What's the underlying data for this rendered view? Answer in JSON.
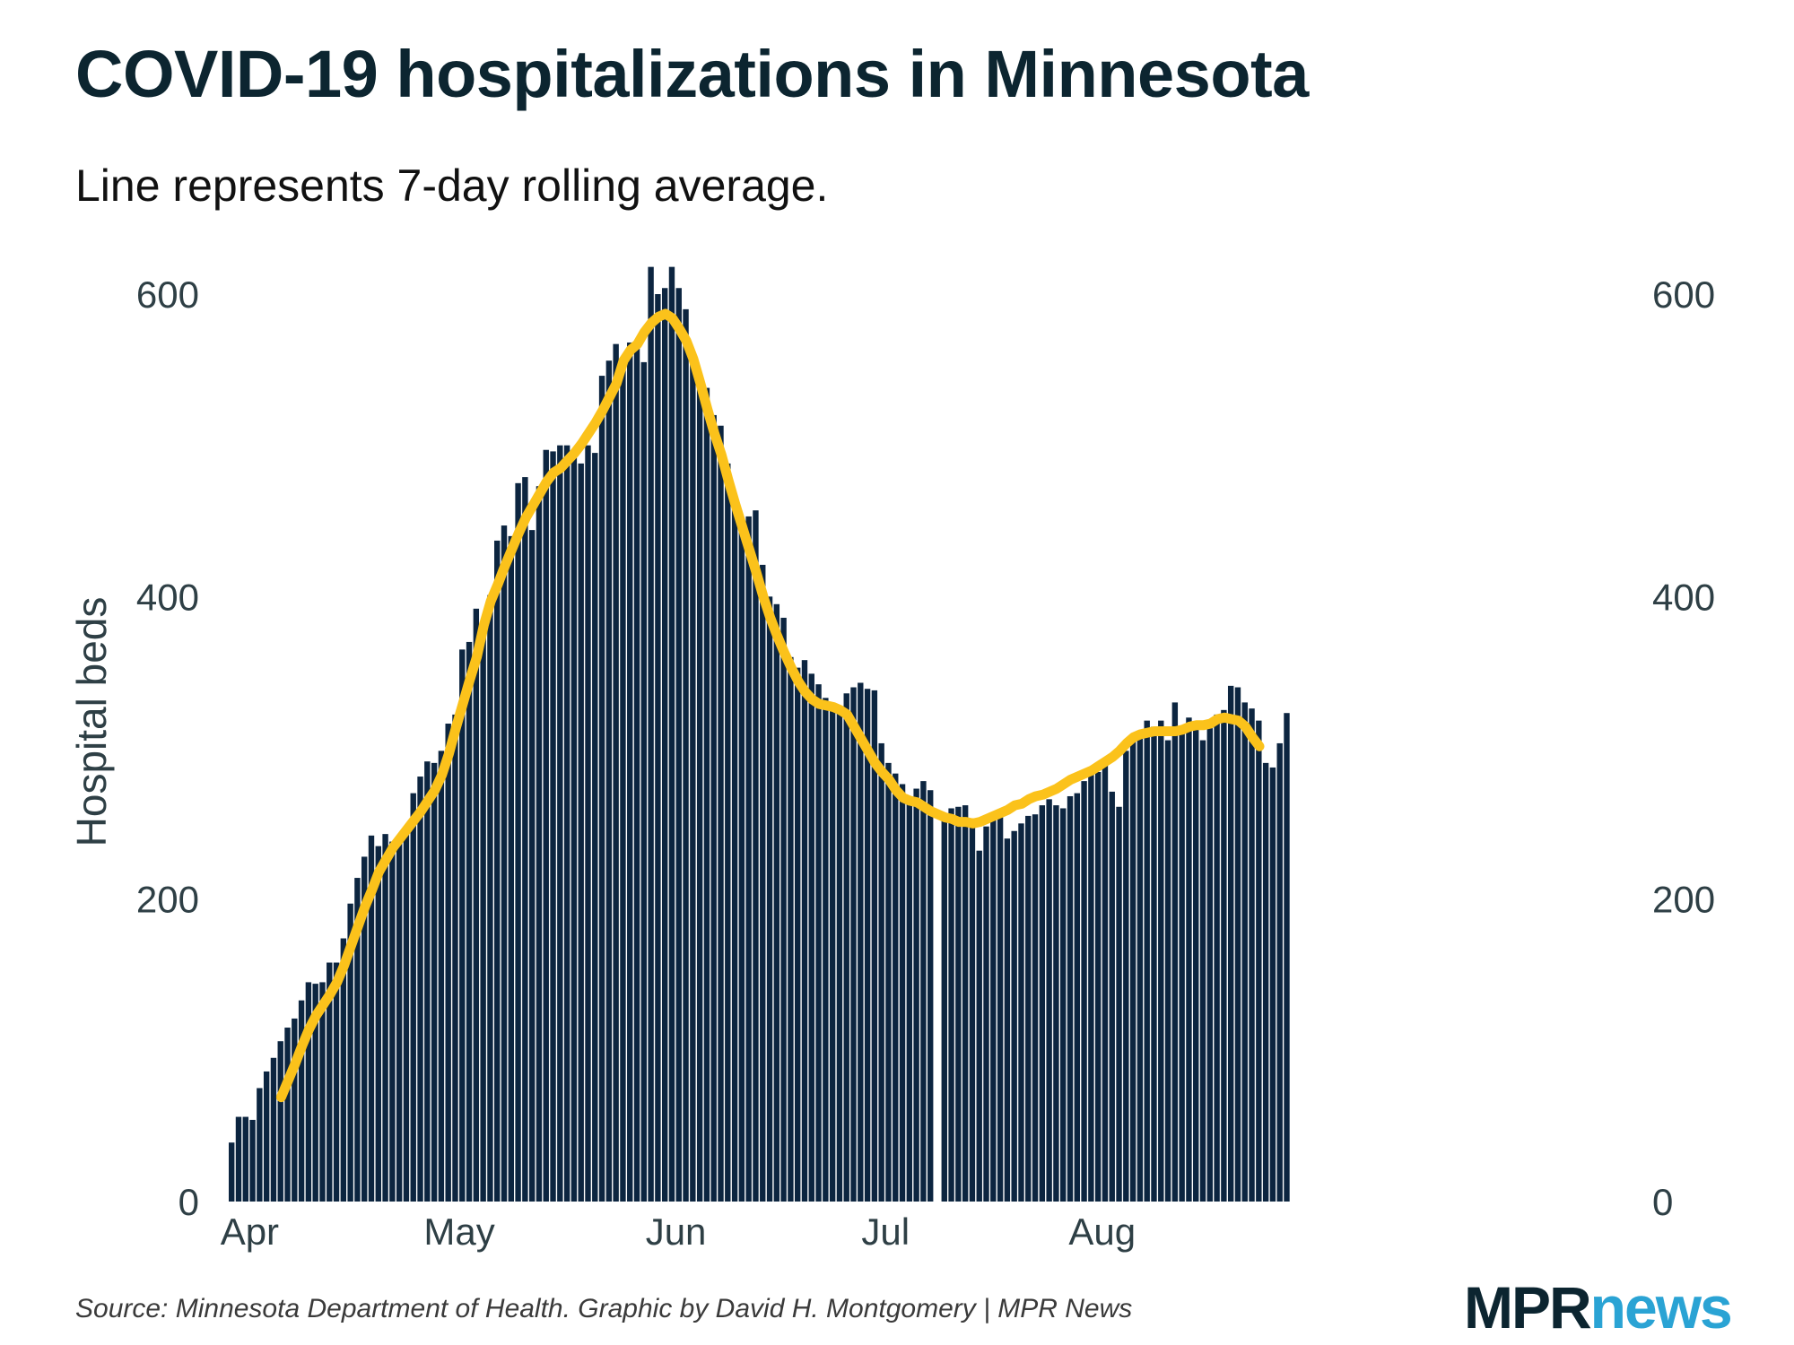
{
  "chart_data": {
    "type": "bar",
    "title": "COVID-19 hospitalizations in Minnesota",
    "subtitle": "Line represents 7-day rolling average.",
    "ylabel": "Hospital beds",
    "xlabel": "",
    "ylim": [
      0,
      600
    ],
    "yticks": [
      0,
      200,
      400,
      600
    ],
    "x_tick_labels": [
      {
        "label": "Apr",
        "day": 3
      },
      {
        "label": "May",
        "day": 33
      },
      {
        "label": "Jun",
        "day": 64
      },
      {
        "label": "Jul",
        "day": 94
      },
      {
        "label": "Aug",
        "day": 125
      }
    ],
    "grid": false,
    "legend": "none",
    "colors": {
      "bars": "#0c2540",
      "line": "#fbc21b"
    },
    "series": [
      {
        "type": "bar",
        "values": [
          39,
          56,
          56,
          54,
          75,
          86,
          95,
          106,
          115,
          121,
          133,
          145,
          144,
          145,
          158,
          158,
          174,
          197,
          214,
          228,
          242,
          235,
          243,
          238,
          238,
          244,
          270,
          281,
          291,
          290,
          298,
          316,
          322,
          365,
          370,
          392,
          377,
          401,
          437,
          447,
          440,
          475,
          479,
          444,
          473,
          497,
          496,
          500,
          500,
          493,
          488,
          500,
          495,
          546,
          556,
          567,
          553,
          568,
          568,
          555,
          618,
          600,
          604,
          618,
          604,
          590,
          558,
          540,
          538,
          520,
          513,
          488,
          465,
          452,
          453,
          457,
          421,
          400,
          395,
          386,
          360,
          353,
          358,
          349,
          342,
          333,
          325,
          323,
          336,
          340,
          343,
          339,
          338,
          303,
          290,
          283,
          276,
          268,
          273,
          278,
          272,
          null,
          256,
          260,
          261,
          262,
          248,
          232,
          248,
          256,
          254,
          240,
          245,
          250,
          255,
          256,
          262,
          266,
          262,
          260,
          268,
          270,
          278,
          285,
          284,
          290,
          271,
          261,
          298,
          305,
          310,
          318,
          314,
          318,
          305,
          330,
          311,
          320,
          316,
          305,
          313,
          322,
          325,
          341,
          340,
          330,
          326,
          318,
          290,
          287,
          303,
          323
        ]
      },
      {
        "type": "line",
        "values": [
          null,
          null,
          null,
          null,
          null,
          null,
          null,
          69,
          80,
          91,
          103,
          114,
          123,
          130,
          137,
          145,
          156,
          169,
          182,
          195,
          206,
          218,
          226,
          234,
          240,
          246,
          252,
          258,
          265,
          272,
          282,
          296,
          313,
          329,
          345,
          360,
          381,
          397,
          408,
          420,
          431,
          442,
          452,
          460,
          468,
          476,
          482,
          485,
          490,
          495,
          501,
          508,
          515,
          523,
          532,
          541,
          556,
          563,
          567,
          575,
          581,
          585,
          587,
          584,
          577,
          569,
          557,
          541,
          524,
          508,
          494,
          477,
          461,
          446,
          431,
          416,
          400,
          386,
          374,
          363,
          353,
          344,
          337,
          332,
          329,
          328,
          327,
          325,
          322,
          314,
          306,
          298,
          290,
          284,
          279,
          272,
          267,
          265,
          264,
          261,
          258,
          256,
          254,
          253,
          251,
          251,
          250,
          251,
          253,
          255,
          257,
          259,
          262,
          263,
          266,
          268,
          269,
          271,
          273,
          276,
          279,
          281,
          283,
          285,
          288,
          291,
          294,
          298,
          303,
          307,
          309,
          310,
          311,
          311,
          311,
          311,
          312,
          314,
          315,
          315,
          316,
          319,
          320,
          319,
          318,
          314,
          307,
          301
        ]
      }
    ]
  },
  "source": "Source: Minnesota Department of Health. Graphic by David H. Montgomery | MPR News",
  "logo": {
    "mpr": "MPR",
    "news": "news"
  }
}
